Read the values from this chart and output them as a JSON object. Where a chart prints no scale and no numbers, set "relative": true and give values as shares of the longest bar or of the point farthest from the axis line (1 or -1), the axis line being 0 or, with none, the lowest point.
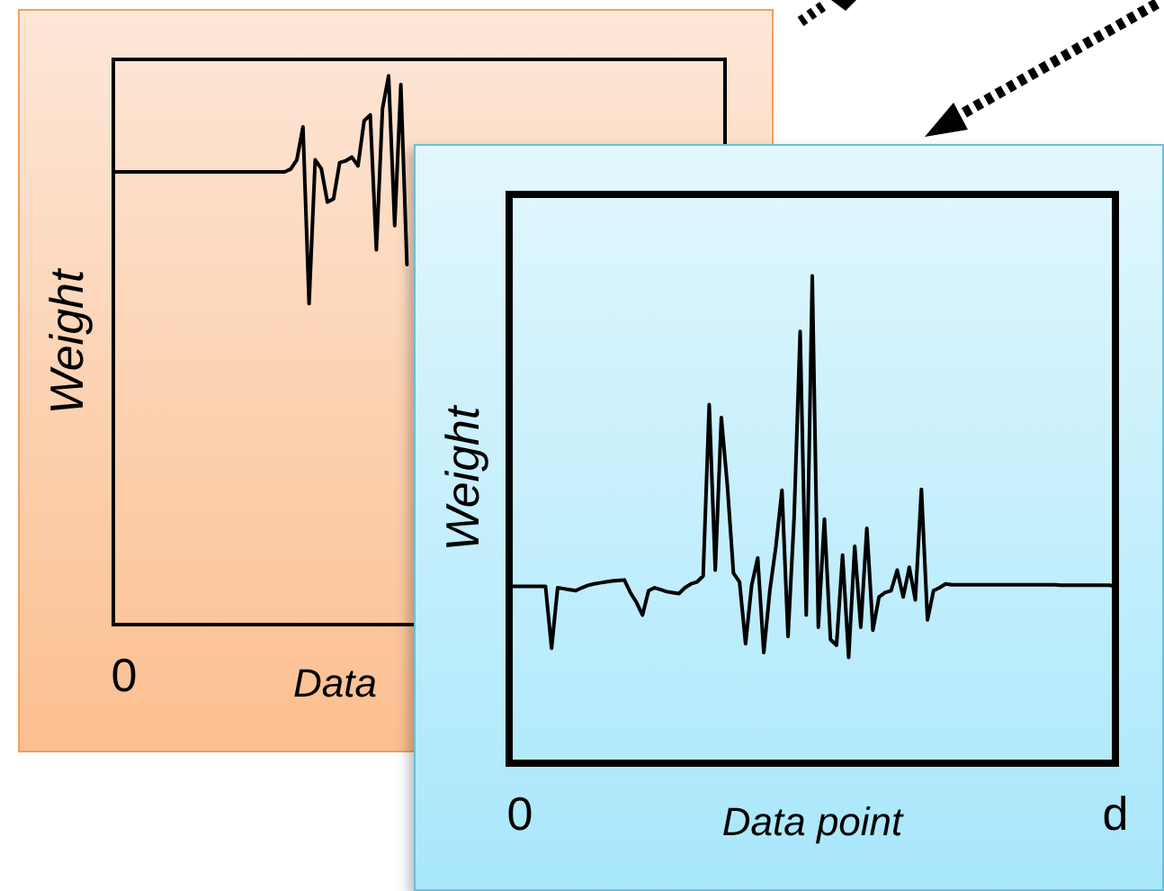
{
  "chart_data": [
    {
      "type": "line",
      "relative": true,
      "xlabel": "Data",
      "ylabel": "Weight",
      "annotations": [
        "0"
      ],
      "legend": false,
      "marker": "none",
      "line_style": "solid",
      "categories": [
        null,
        null,
        null,
        null,
        null,
        null,
        null,
        null,
        null,
        null,
        null,
        null,
        null,
        null,
        null,
        null,
        null,
        null,
        null,
        null,
        null,
        null,
        null,
        null,
        null,
        null,
        null,
        null,
        null,
        null,
        null,
        null,
        null,
        null,
        null,
        null,
        null,
        null,
        null,
        null,
        null,
        null,
        null,
        null,
        null,
        null,
        null,
        null,
        null,
        null,
        null,
        null,
        null,
        null,
        null,
        null,
        null,
        null,
        null,
        null,
        null,
        null,
        null,
        null,
        null,
        null,
        null,
        null,
        null,
        null,
        null,
        null,
        null,
        null,
        null,
        null,
        null,
        null,
        null,
        null,
        null,
        null,
        null,
        null,
        null,
        null,
        null,
        null,
        null,
        null,
        null,
        null,
        null,
        null,
        null,
        null,
        null,
        null,
        null,
        null,
        null
      ],
      "series": [
        {
          "color": "#000000",
          "values": [
            0.825,
            0.825,
            0.825,
            0.825,
            0.825,
            0.825,
            0.825,
            0.825,
            0.825,
            0.825,
            0.825,
            0.825,
            0.825,
            0.825,
            0.825,
            0.825,
            0.825,
            0.825,
            0.825,
            0.825,
            0.825,
            0.825,
            0.825,
            0.825,
            0.825,
            0.825,
            0.825,
            0.825,
            0.825,
            0.83,
            0.847,
            0.907,
            0.585,
            0.847,
            0.831,
            0.77,
            0.776,
            0.842,
            0.845,
            0.852,
            0.836,
            0.918,
            0.929,
            0.683,
            0.94,
            1.0,
            0.727,
            0.984,
            0.656,
            null,
            null,
            null,
            null,
            null,
            null,
            null,
            null,
            null,
            null,
            null,
            null,
            null,
            null,
            null,
            null,
            null,
            null,
            null,
            null,
            null,
            null,
            null,
            null,
            null,
            null,
            null,
            null,
            null,
            null,
            null,
            null,
            null,
            null,
            null,
            null,
            null,
            null,
            null,
            null,
            null,
            null,
            null,
            null,
            null,
            null,
            null,
            null,
            null,
            null,
            null,
            null
          ]
        }
      ]
    },
    {
      "type": "line",
      "relative": true,
      "xlabel": "Data point",
      "ylabel": "Weight",
      "annotations": [
        "0",
        "d"
      ],
      "legend": false,
      "marker": "none",
      "line_style": "solid",
      "categories": [
        null,
        null,
        null,
        null,
        null,
        null,
        null,
        null,
        null,
        null,
        null,
        null,
        null,
        null,
        null,
        null,
        null,
        null,
        null,
        null,
        null,
        null,
        null,
        null,
        null,
        null,
        null,
        null,
        null,
        null,
        null,
        null,
        null,
        null,
        null,
        null,
        null,
        null,
        null,
        null,
        null,
        null,
        null,
        null,
        null,
        null,
        null,
        null,
        null,
        null,
        null,
        null,
        null,
        null,
        null,
        null,
        null,
        null,
        null,
        null,
        null,
        null,
        null,
        null,
        null,
        null,
        null,
        null,
        null,
        null,
        null,
        null,
        null,
        null,
        null,
        null,
        null,
        null,
        null,
        null,
        null,
        null,
        null,
        null,
        null,
        null,
        null,
        null,
        null,
        null,
        null,
        null,
        null,
        null,
        null,
        null,
        null,
        null,
        null,
        null,
        null
      ],
      "series": [
        {
          "color": "#000000",
          "values": [
            0.363,
            0.363,
            0.363,
            0.363,
            0.363,
            0.363,
            0.363,
            0.236,
            0.36,
            0.358,
            0.356,
            0.354,
            0.36,
            0.365,
            0.368,
            0.37,
            0.372,
            0.374,
            0.375,
            0.376,
            0.35,
            0.33,
            0.304,
            0.354,
            0.36,
            0.356,
            0.352,
            0.35,
            0.348,
            0.36,
            0.368,
            0.372,
            0.384,
            0.736,
            0.396,
            0.709,
            0.569,
            0.39,
            0.372,
            0.245,
            0.365,
            0.421,
            0.227,
            0.354,
            0.445,
            0.56,
            0.26,
            0.503,
            0.886,
            0.304,
            1.0,
            0.279,
            0.501,
            0.254,
            0.242,
            0.427,
            0.217,
            0.445,
            0.279,
            0.482,
            0.273,
            0.341,
            0.35,
            0.354,
            0.396,
            0.341,
            0.402,
            0.335,
            0.562,
            0.294,
            0.354,
            0.36,
            0.368,
            0.366,
            0.366,
            0.366,
            0.366,
            0.366,
            0.366,
            0.366,
            0.366,
            0.366,
            0.366,
            0.366,
            0.366,
            0.366,
            0.366,
            0.366,
            0.366,
            0.366,
            0.366,
            0.365,
            0.365,
            0.365,
            0.365,
            0.365,
            0.365,
            0.365,
            0.365,
            0.365,
            0.363
          ]
        }
      ]
    }
  ]
}
